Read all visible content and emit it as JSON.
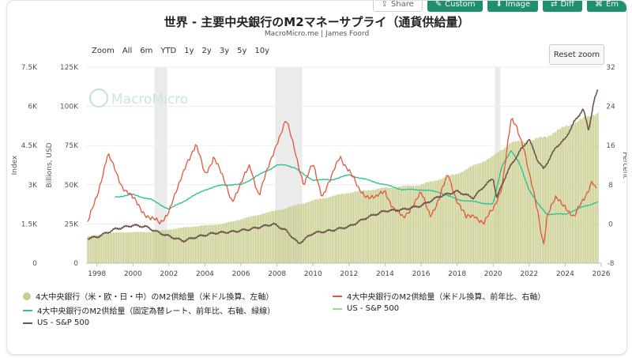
{
  "toolbar": {
    "share_label": "Share",
    "custom_label": "Custom",
    "image_label": "Image",
    "diff_label": "Diff",
    "embed_label": "Em"
  },
  "zoom": {
    "buttons": [
      "Zoom",
      "All",
      "6m",
      "YTD",
      "1y",
      "2y",
      "3y",
      "5y",
      "10y"
    ],
    "reset_label": "Reset zoom"
  },
  "watermark": "MacroMicro",
  "colors": {
    "bars": "#c9cd8e",
    "m2_yoy_usd": "#e2573a",
    "m2_yoy_fixed": "#2fc193",
    "sp500": "#6e554a",
    "shaded": "#e6e6e6"
  },
  "chart_data": {
    "type": "bar",
    "title": "世界 - 主要中央銀行のM2マネーサプライ（通貨供給量）",
    "subtitle": "MacroMicro.me | James Foord",
    "x_range": [
      1997.4,
      2026.0
    ],
    "x_ticks": [
      "1998",
      "2000",
      "2002",
      "2004",
      "2006",
      "2008",
      "2010",
      "2012",
      "2014",
      "2016",
      "2018",
      "2020",
      "2022",
      "2024",
      "2026"
    ],
    "axes": {
      "index": {
        "label": "Index",
        "range": [
          0,
          7500
        ],
        "ticks": [
          "0",
          "1.5K",
          "3K",
          "4.5K",
          "6K",
          "7.5K"
        ]
      },
      "billions": {
        "label": "Billions, USD",
        "range": [
          0,
          125000
        ],
        "ticks": [
          "0",
          "25K",
          "50K",
          "75K",
          "100K",
          "125K"
        ]
      },
      "percent": {
        "label": "Percent",
        "range": [
          -8,
          32
        ],
        "ticks": [
          "-8",
          "0",
          "8",
          "16",
          "24",
          "32"
        ]
      }
    },
    "recessions": [
      [
        2001.2,
        2001.9
      ],
      [
        2007.9,
        2009.4
      ],
      [
        2020.1,
        2020.4
      ]
    ],
    "grid": true,
    "legend_position": "bottom",
    "series": [
      {
        "name": "4大中央銀行（米・欧・日・中）のM2供給量（米ドル換算、左軸）",
        "type": "bar",
        "axis": "billions",
        "x": [
          1997.5,
          1999,
          2001,
          2003,
          2005,
          2007,
          2008.5,
          2010,
          2012,
          2014,
          2016,
          2018,
          2020,
          2021,
          2022,
          2023,
          2024,
          2025,
          2025.8
        ],
        "y": [
          17000,
          19500,
          20000,
          23000,
          25000,
          31000,
          35000,
          40000,
          45000,
          48000,
          50000,
          57000,
          68000,
          77000,
          78000,
          81000,
          87000,
          92000,
          96000
        ]
      },
      {
        "name": "4大中央銀行のM2供給量（米ドル換算、前年比、右軸）",
        "type": "line",
        "axis": "percent",
        "x": [
          1997.5,
          1998,
          1998.6,
          1999,
          1999.4,
          2000,
          2000.5,
          2001,
          2001.5,
          2002,
          2002.5,
          2003,
          2003.5,
          2004,
          2004.5,
          2005,
          2005.5,
          2006,
          2006.5,
          2007,
          2007.5,
          2008,
          2008.5,
          2009,
          2009.5,
          2010,
          2010.5,
          2011,
          2011.5,
          2012,
          2012.5,
          2013,
          2013.5,
          2014,
          2014.5,
          2015,
          2015.5,
          2016,
          2016.5,
          2017,
          2017.5,
          2018,
          2018.5,
          2019,
          2019.5,
          2020,
          2020.5,
          2021,
          2021.3,
          2021.7,
          2022,
          2022.5,
          2022.8,
          2023,
          2023.5,
          2024,
          2024.5,
          2025,
          2025.5,
          2025.8
        ],
        "y": [
          0,
          6,
          14,
          11,
          8,
          5,
          3,
          1,
          0,
          3,
          7,
          13,
          16,
          10,
          14,
          9,
          5,
          8,
          12,
          6,
          11,
          17,
          21,
          15,
          8,
          12,
          6,
          9,
          14,
          11,
          7,
          6,
          5,
          7,
          3,
          1,
          4,
          6,
          2,
          5,
          10,
          5,
          1,
          2,
          0,
          3,
          8,
          21,
          20,
          16,
          10,
          2,
          -4,
          2,
          5,
          4,
          1,
          5,
          9,
          6
        ]
      },
      {
        "name": "4大中央銀行のM2供給量（固定為替レート、前年比、右軸、緑線）",
        "type": "line",
        "axis": "percent",
        "x": [
          1999,
          2000,
          2001,
          2002,
          2003,
          2004,
          2005,
          2006,
          2007,
          2008,
          2008.5,
          2009,
          2009.5,
          2010,
          2011,
          2012,
          2013,
          2014,
          2015,
          2016,
          2017,
          2018,
          2019,
          2020,
          2020.5,
          2021,
          2021.5,
          2022,
          2022.5,
          2023,
          2024,
          2025,
          2025.8
        ],
        "y": [
          5.5,
          6,
          5,
          3,
          5,
          7,
          8,
          8,
          10,
          12,
          12,
          11.5,
          10,
          9,
          9,
          10,
          9,
          8,
          7,
          7,
          6.5,
          5,
          4.5,
          4,
          12,
          15,
          12,
          7,
          4,
          2,
          2,
          3.5,
          4.5
        ]
      },
      {
        "name": "US - S&P 500",
        "type": "line",
        "axis": "index",
        "legend_only": true,
        "x": [],
        "y": []
      },
      {
        "name": "US - S&P 500",
        "type": "line",
        "axis": "index",
        "x": [
          1997.5,
          1998,
          1999,
          2000,
          2000.7,
          2001.5,
          2002.8,
          2003.5,
          2004.5,
          2005.5,
          2006.5,
          2007.8,
          2008.5,
          2009.2,
          2010,
          2011,
          2012,
          2013,
          2014,
          2015,
          2016,
          2017,
          2018,
          2018.9,
          2019.5,
          2020,
          2020.2,
          2020.7,
          2021,
          2021.5,
          2021.99,
          2022.5,
          2022.8,
          2023.5,
          2024,
          2024.5,
          2025,
          2025.3,
          2025.6,
          2025.85
        ],
        "y": [
          950,
          1000,
          1300,
          1450,
          1400,
          1150,
          850,
          1000,
          1150,
          1200,
          1300,
          1500,
          1250,
          750,
          1150,
          1250,
          1400,
          1750,
          2000,
          2050,
          2200,
          2550,
          2750,
          2500,
          2950,
          3250,
          2500,
          3350,
          3750,
          4300,
          4750,
          3900,
          3600,
          4450,
          4750,
          5400,
          5900,
          5100,
          6200,
          6700
        ]
      }
    ]
  }
}
